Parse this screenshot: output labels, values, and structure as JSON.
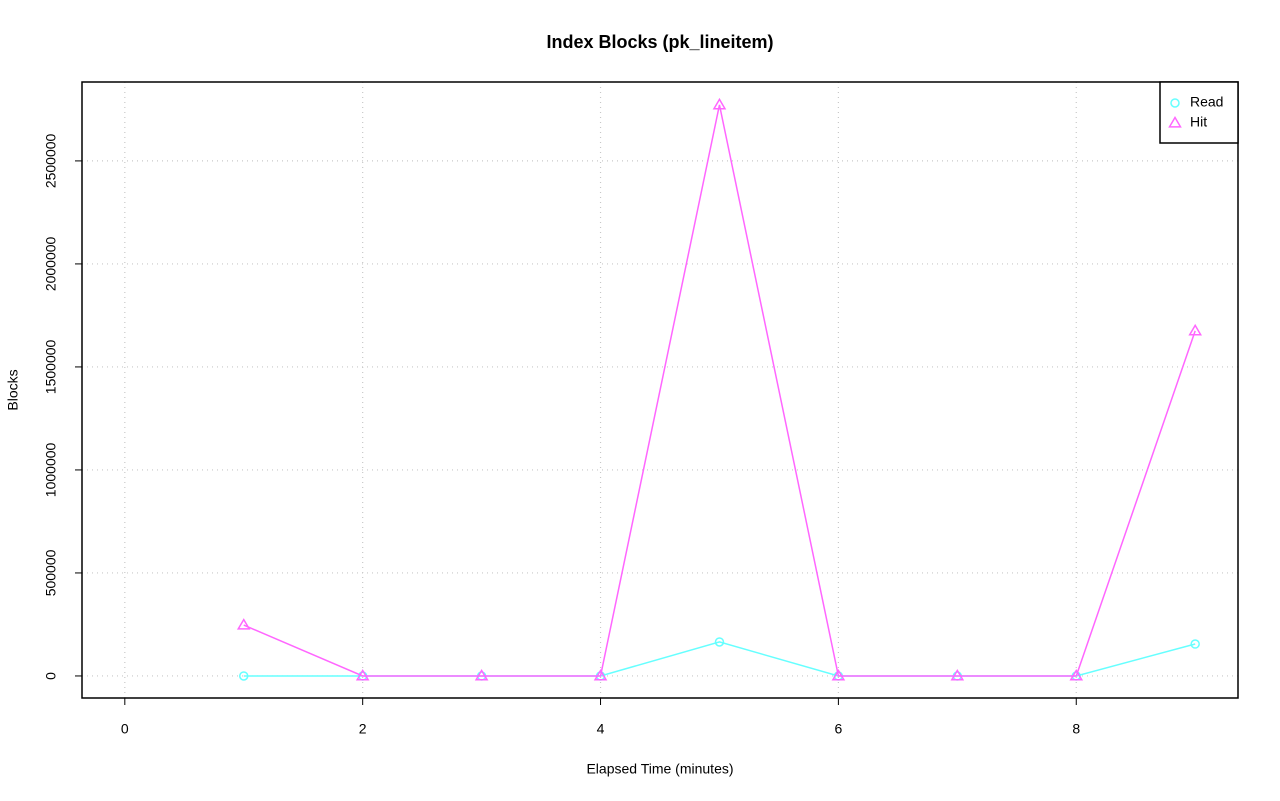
{
  "chart_data": {
    "type": "line",
    "title": "Index Blocks (pk_lineitem)",
    "xlabel": "Elapsed Time (minutes)",
    "ylabel": "Blocks",
    "x": [
      1,
      2,
      3,
      4,
      5,
      6,
      7,
      8,
      9
    ],
    "series": [
      {
        "name": "Read",
        "color": "#66ffff",
        "marker": "circle",
        "values": [
          0,
          0,
          0,
          0,
          165000,
          0,
          0,
          0,
          155000
        ]
      },
      {
        "name": "Hit",
        "color": "#ff66ff",
        "marker": "triangle",
        "values": [
          247000,
          0,
          0,
          0,
          2772000,
          0,
          0,
          0,
          1675000
        ]
      }
    ],
    "xlim": [
      -0.36,
      9.36
    ],
    "xticks": [
      0,
      2,
      4,
      6,
      8
    ],
    "ylim": [
      -107000,
      2883000
    ],
    "yticks": [
      0,
      500000,
      1000000,
      1500000,
      2000000,
      2500000
    ],
    "grid": true,
    "legend": "top-right"
  }
}
